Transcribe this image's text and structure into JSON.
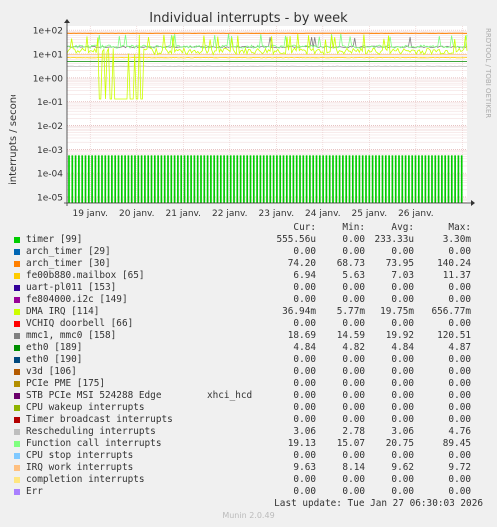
{
  "chart_data": {
    "type": "line",
    "title": "Individual interrupts - by week",
    "ylabel": "interrupts / second",
    "yscale": "log",
    "ylim": [
      5.6e-06,
      150
    ],
    "y_ticks": [
      "1e+02",
      "1e+01",
      "1e+00",
      "1e-01",
      "1e-02",
      "1e-03",
      "1e-04",
      "1e-05"
    ],
    "x_ticks": [
      "19 janv.",
      "20 janv.",
      "21 janv.",
      "22 janv.",
      "23 janv.",
      "24 janv.",
      "25 janv.",
      "26 janv."
    ],
    "grid": true,
    "series": [
      {
        "name": "timer [99]",
        "color": "#00cc00",
        "cur": "555.56u",
        "min": "0.00",
        "avg": "233.33u",
        "max": "3.30m"
      },
      {
        "name": "arch_timer [29]",
        "color": "#0066b3",
        "cur": "0.00",
        "min": "0.00",
        "avg": "0.00",
        "max": "0.00"
      },
      {
        "name": "arch_timer [30]",
        "color": "#ff8000",
        "cur": "74.20",
        "min": "68.73",
        "avg": "73.95",
        "max": "140.24"
      },
      {
        "name": "fe00b880.mailbox [65]",
        "color": "#ffcc00",
        "cur": "6.94",
        "min": "5.63",
        "avg": "7.03",
        "max": "11.37"
      },
      {
        "name": "uart-pl011 [153]",
        "color": "#330099",
        "cur": "0.00",
        "min": "0.00",
        "avg": "0.00",
        "max": "0.00"
      },
      {
        "name": "fe804000.i2c [149]",
        "color": "#990099",
        "cur": "0.00",
        "min": "0.00",
        "avg": "0.00",
        "max": "0.00"
      },
      {
        "name": "DMA IRQ [114]",
        "color": "#ccff00",
        "cur": "36.94m",
        "min": "5.77m",
        "avg": "19.75m",
        "max": "656.77m"
      },
      {
        "name": "VCHIQ doorbell [66]",
        "color": "#ff0000",
        "cur": "0.00",
        "min": "0.00",
        "avg": "0.00",
        "max": "0.00"
      },
      {
        "name": "mmc1, mmc0 [158]",
        "color": "#808080",
        "cur": "18.69",
        "min": "14.59",
        "avg": "19.92",
        "max": "120.51"
      },
      {
        "name": "eth0 [189]",
        "color": "#008f00",
        "cur": "4.84",
        "min": "4.82",
        "avg": "4.84",
        "max": "4.87"
      },
      {
        "name": "eth0 [190]",
        "color": "#00487d",
        "cur": "0.00",
        "min": "0.00",
        "avg": "0.00",
        "max": "0.00"
      },
      {
        "name": "v3d [106]",
        "color": "#b35a00",
        "cur": "0.00",
        "min": "0.00",
        "avg": "0.00",
        "max": "0.00"
      },
      {
        "name": "PCIe PME [175]",
        "color": "#b38f00",
        "cur": "0.00",
        "min": "0.00",
        "avg": "0.00",
        "max": "0.00"
      },
      {
        "name": "STB PCIe MSI 524288 Edge",
        "extra": "xhci_hcd",
        "color": "#6b006b",
        "cur": "0.00",
        "min": "0.00",
        "avg": "0.00",
        "max": "0.00"
      },
      {
        "name": "CPU wakeup interrupts",
        "color": "#8fb300",
        "cur": "0.00",
        "min": "0.00",
        "avg": "0.00",
        "max": "0.00"
      },
      {
        "name": "Timer broadcast interrupts",
        "color": "#b30000",
        "cur": "0.00",
        "min": "0.00",
        "avg": "0.00",
        "max": "0.00"
      },
      {
        "name": "Rescheduling interrupts",
        "color": "#bebebe",
        "cur": "3.06",
        "min": "2.78",
        "avg": "3.06",
        "max": "4.76"
      },
      {
        "name": "Function call interrupts",
        "color": "#80ff80",
        "cur": "19.13",
        "min": "15.07",
        "avg": "20.75",
        "max": "89.45"
      },
      {
        "name": "CPU stop interrupts",
        "color": "#80c9ff",
        "cur": "0.00",
        "min": "0.00",
        "avg": "0.00",
        "max": "0.00"
      },
      {
        "name": "IRQ work interrupts",
        "color": "#ffc080",
        "cur": "9.63",
        "min": "8.14",
        "avg": "9.62",
        "max": "9.72"
      },
      {
        "name": "completion interrupts",
        "color": "#ffe680",
        "cur": "0.00",
        "min": "0.00",
        "avg": "0.00",
        "max": "0.00"
      },
      {
        "name": "Err",
        "color": "#aa80ff",
        "cur": "0.00",
        "min": "0.00",
        "avg": "0.00",
        "max": "0.00"
      }
    ]
  },
  "legend_header": {
    "cur": "Cur:",
    "min": "Min:",
    "avg": "Avg:",
    "max": "Max:"
  },
  "side_label": "RRDTOOL / TOBI OETIKER",
  "last_update": "Last update: Tue Jan 27 06:30:03 2026",
  "footer": "Munin 2.0.49"
}
